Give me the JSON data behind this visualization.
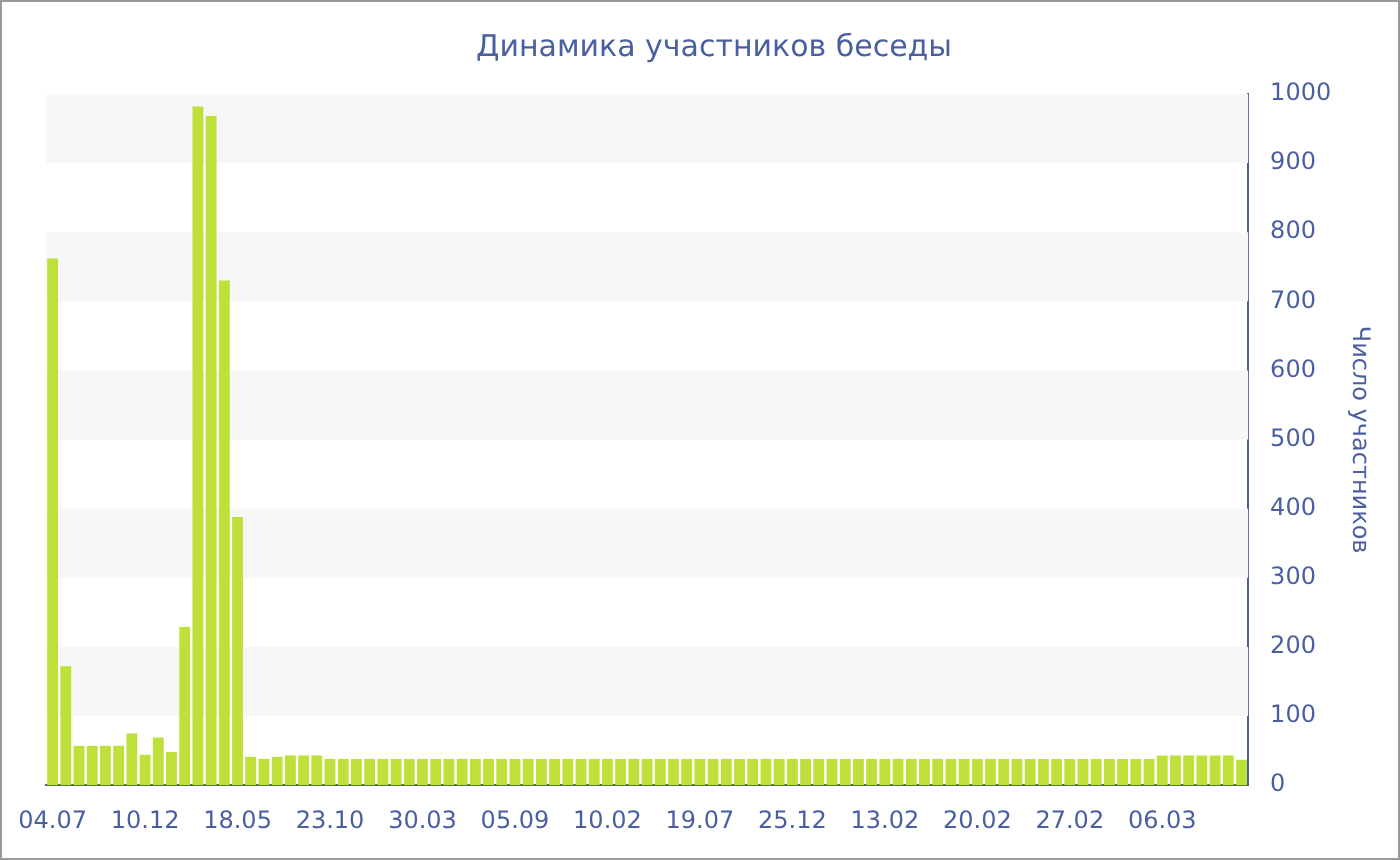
{
  "chart_data": {
    "type": "bar",
    "title": "Динамика участников беседы",
    "ylabel": "Число участников",
    "categories": [
      "04.07",
      null,
      null,
      null,
      null,
      null,
      null,
      "10.12",
      null,
      null,
      null,
      null,
      null,
      null,
      "18.05",
      null,
      null,
      null,
      null,
      null,
      null,
      "23.10",
      null,
      null,
      null,
      null,
      null,
      null,
      "30.03",
      null,
      null,
      null,
      null,
      null,
      null,
      "05.09",
      null,
      null,
      null,
      null,
      null,
      null,
      "10.02",
      null,
      null,
      null,
      null,
      null,
      null,
      "19.07",
      null,
      null,
      null,
      null,
      null,
      null,
      "25.12",
      null,
      null,
      null,
      null,
      null,
      null,
      "13.02",
      null,
      null,
      null,
      null,
      null,
      null,
      "20.02",
      null,
      null,
      null,
      null,
      null,
      null,
      "27.02",
      null,
      null,
      null,
      null,
      null,
      null,
      "06.03",
      null,
      null,
      null,
      null,
      null,
      null
    ],
    "values": [
      762,
      172,
      57,
      57,
      57,
      57,
      75,
      44,
      69,
      48,
      229,
      982,
      968,
      730,
      388,
      41,
      38,
      41,
      43,
      43,
      43,
      38,
      38,
      38,
      38,
      38,
      38,
      38,
      38,
      38,
      38,
      38,
      38,
      38,
      38,
      38,
      38,
      38,
      38,
      38,
      38,
      38,
      38,
      38,
      38,
      38,
      38,
      38,
      38,
      38,
      38,
      38,
      38,
      38,
      38,
      38,
      38,
      38,
      38,
      38,
      38,
      38,
      38,
      38,
      38,
      38,
      38,
      38,
      38,
      38,
      38,
      38,
      38,
      38,
      38,
      38,
      38,
      38,
      38,
      38,
      38,
      38,
      38,
      38,
      43,
      43,
      43,
      43,
      43,
      43,
      37
    ],
    "color": "#bde03a",
    "ylim": [
      0,
      1000
    ],
    "yticks": [
      0,
      100,
      200,
      300,
      400,
      500,
      600,
      700,
      800,
      900,
      1000
    ]
  }
}
